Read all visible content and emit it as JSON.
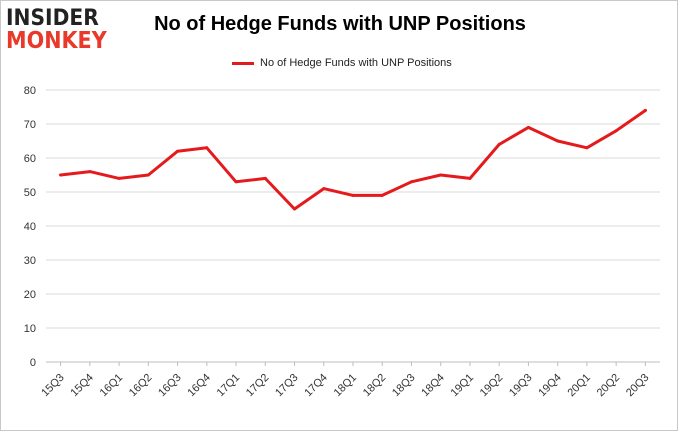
{
  "logo": {
    "line1": "INSIDER",
    "line2": "MONKEY"
  },
  "chart_data": {
    "type": "line",
    "title": "No of Hedge Funds with UNP Positions",
    "xlabel": "",
    "ylabel": "",
    "categories": [
      "15Q3",
      "15Q4",
      "16Q1",
      "16Q2",
      "16Q3",
      "16Q4",
      "17Q1",
      "17Q2",
      "17Q3",
      "17Q4",
      "18Q1",
      "18Q2",
      "18Q3",
      "18Q4",
      "19Q1",
      "19Q2",
      "19Q3",
      "19Q4",
      "20Q1",
      "20Q2",
      "20Q3"
    ],
    "series": [
      {
        "name": "No of Hedge Funds with UNP Positions",
        "color": "#e41a1c",
        "values": [
          55,
          56,
          54,
          55,
          62,
          63,
          53,
          54,
          45,
          51,
          49,
          49,
          53,
          55,
          54,
          64,
          69,
          65,
          63,
          68,
          74
        ]
      }
    ],
    "ylim": [
      0,
      80
    ],
    "yticks": [
      0,
      10,
      20,
      30,
      40,
      50,
      60,
      70,
      80
    ],
    "grid": "horizontal",
    "legend_position": "top-center"
  }
}
